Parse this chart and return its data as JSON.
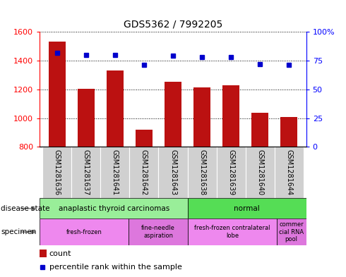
{
  "title": "GDS5362 / 7992205",
  "samples": [
    "GSM1281636",
    "GSM1281637",
    "GSM1281641",
    "GSM1281642",
    "GSM1281643",
    "GSM1281638",
    "GSM1281639",
    "GSM1281640",
    "GSM1281644"
  ],
  "counts": [
    1530,
    1205,
    1330,
    920,
    1255,
    1215,
    1230,
    1035,
    1005
  ],
  "percentiles": [
    82,
    80,
    80,
    71,
    79,
    78,
    78,
    72,
    71
  ],
  "ylim_left": [
    800,
    1600
  ],
  "ylim_right": [
    0,
    100
  ],
  "yticks_left": [
    800,
    1000,
    1200,
    1400,
    1600
  ],
  "yticks_right": [
    0,
    25,
    50,
    75,
    100
  ],
  "bar_color": "#bb1111",
  "dot_color": "#0000cc",
  "chart_bg": "#ffffff",
  "sample_bg": "#d0d0d0",
  "disease_state_groups": [
    {
      "label": "anaplastic thyroid carcinomas",
      "span": [
        0,
        5
      ],
      "color": "#99ee99"
    },
    {
      "label": "normal",
      "span": [
        5,
        9
      ],
      "color": "#55dd55"
    }
  ],
  "specimen_groups": [
    {
      "label": "fresh-frozen",
      "span": [
        0,
        3
      ],
      "color": "#ee88ee"
    },
    {
      "label": "fine-needle\naspiration",
      "span": [
        3,
        5
      ],
      "color": "#dd77dd"
    },
    {
      "label": "fresh-frozen contralateral\nlobe",
      "span": [
        5,
        8
      ],
      "color": "#ee88ee"
    },
    {
      "label": "commer\ncial RNA\npool",
      "span": [
        8,
        9
      ],
      "color": "#dd77dd"
    }
  ],
  "legend_count_label": "count",
  "legend_pct_label": "percentile rank within the sample",
  "disease_state_label": "disease state",
  "specimen_label": "specimen"
}
